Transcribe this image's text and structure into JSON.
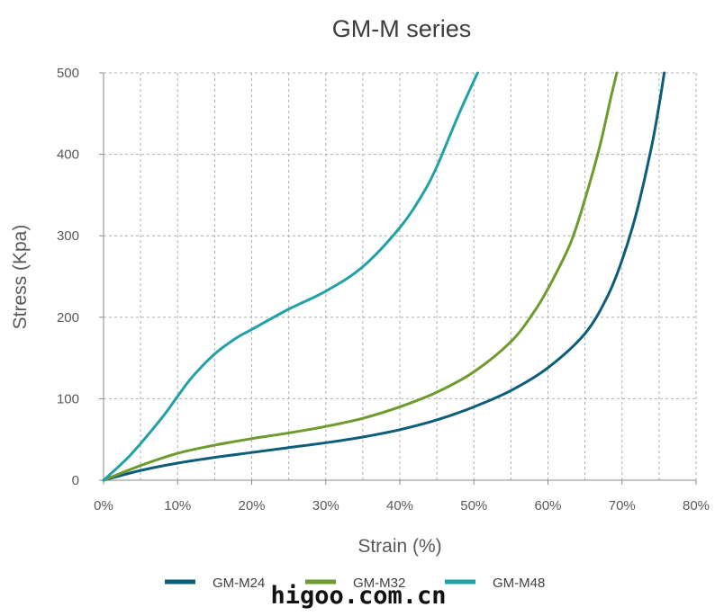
{
  "chart_data": {
    "type": "line",
    "title": "GM-M series",
    "xlabel": "Strain (%)",
    "ylabel": "Stress (Kpa)",
    "xlim": [
      0,
      80
    ],
    "ylim": [
      0,
      500
    ],
    "x_ticks": [
      0,
      10,
      20,
      30,
      40,
      50,
      60,
      70,
      80
    ],
    "x_tick_labels": [
      "0%",
      "10%",
      "20%",
      "30%",
      "40%",
      "50%",
      "60%",
      "70%",
      "80%"
    ],
    "y_ticks": [
      0,
      100,
      200,
      300,
      400,
      500
    ],
    "y_tick_labels": [
      "0",
      "100",
      "200",
      "300",
      "400",
      "500"
    ],
    "grid": true,
    "legend_position": "bottom",
    "series": [
      {
        "name": "GM-M24",
        "color": "#0b5d7a",
        "points": [
          [
            0,
            0
          ],
          [
            5,
            12
          ],
          [
            10,
            21
          ],
          [
            15,
            28
          ],
          [
            20,
            34
          ],
          [
            25,
            40
          ],
          [
            30,
            46
          ],
          [
            35,
            53
          ],
          [
            40,
            62
          ],
          [
            45,
            74
          ],
          [
            50,
            90
          ],
          [
            55,
            110
          ],
          [
            60,
            138
          ],
          [
            65,
            180
          ],
          [
            68,
            225
          ],
          [
            70,
            270
          ],
          [
            72,
            330
          ],
          [
            74,
            410
          ],
          [
            75,
            460
          ],
          [
            75.7,
            500
          ]
        ]
      },
      {
        "name": "GM-M32",
        "color": "#6e9a2e",
        "points": [
          [
            0,
            0
          ],
          [
            5,
            18
          ],
          [
            10,
            33
          ],
          [
            15,
            43
          ],
          [
            20,
            51
          ],
          [
            25,
            58
          ],
          [
            30,
            66
          ],
          [
            35,
            76
          ],
          [
            40,
            90
          ],
          [
            45,
            108
          ],
          [
            50,
            133
          ],
          [
            55,
            170
          ],
          [
            58,
            205
          ],
          [
            60,
            235
          ],
          [
            63,
            290
          ],
          [
            65,
            345
          ],
          [
            67,
            410
          ],
          [
            68.5,
            470
          ],
          [
            69.3,
            500
          ]
        ]
      },
      {
        "name": "GM-M48",
        "color": "#22a1a6",
        "points": [
          [
            0,
            0
          ],
          [
            3,
            25
          ],
          [
            5,
            45
          ],
          [
            8,
            78
          ],
          [
            10,
            103
          ],
          [
            12,
            127
          ],
          [
            15,
            155
          ],
          [
            18,
            175
          ],
          [
            20,
            185
          ],
          [
            25,
            210
          ],
          [
            30,
            232
          ],
          [
            35,
            262
          ],
          [
            40,
            310
          ],
          [
            43,
            350
          ],
          [
            45,
            385
          ],
          [
            48,
            450
          ],
          [
            50.5,
            500
          ]
        ]
      }
    ]
  },
  "watermark": "higoo.com.cn"
}
